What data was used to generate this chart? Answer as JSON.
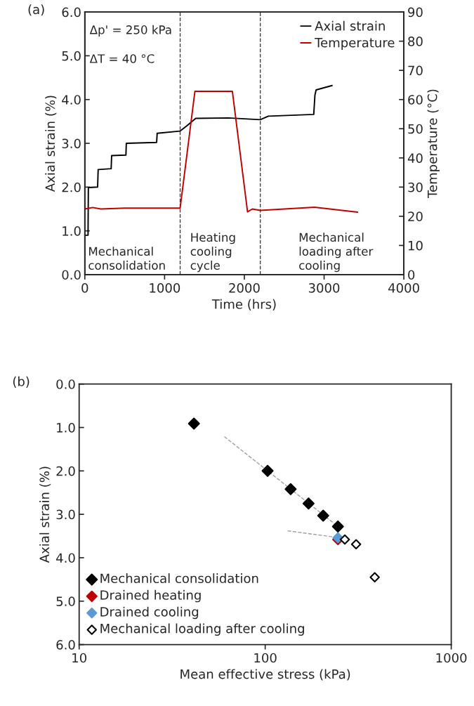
{
  "chart_data": [
    {
      "type": "line",
      "title": "(a)",
      "xlabel": "Time (hrs)",
      "ylabel": "Axial strain (%)",
      "y2label": "Temperature (°C)",
      "series": [
        {
          "name": "Axial strain",
          "color": "#000000",
          "x": [
            0,
            40,
            44,
            160,
            167,
            330,
            336,
            515,
            520,
            900,
            907,
            1195,
            1280,
            1390,
            1800,
            2200,
            2300,
            2870,
            2885,
            2900,
            3100
          ],
          "values": [
            0.9,
            0.9,
            1.99,
            2.0,
            2.4,
            2.42,
            2.72,
            2.73,
            3.0,
            3.02,
            3.23,
            3.28,
            3.4,
            3.57,
            3.58,
            3.54,
            3.62,
            3.66,
            4.1,
            4.22,
            4.32
          ]
        },
        {
          "name": "Temperature",
          "color": "#c00000",
          "axis": "y2",
          "x": [
            0,
            100,
            200,
            500,
            1195,
            1380,
            1850,
            2040,
            2100,
            2200,
            2880,
            3420
          ],
          "values": [
            22.5,
            23,
            22.5,
            22.8,
            22.8,
            62.8,
            62.8,
            21.5,
            22.5,
            22,
            23.1,
            21.4
          ]
        }
      ],
      "xlim": [
        0,
        4000
      ],
      "xticks": [
        0,
        1000,
        2000,
        3000,
        4000
      ],
      "ylim": [
        0,
        6
      ],
      "yticks": [
        {
          "value": 0,
          "label": "0.0"
        },
        {
          "value": 1,
          "label": "1.0"
        },
        {
          "value": 2,
          "label": "2.0"
        },
        {
          "value": 3,
          "label": "3.0"
        },
        {
          "value": 4,
          "label": "4.0"
        },
        {
          "value": 5,
          "label": "5.0"
        },
        {
          "value": 6,
          "label": "6.0"
        }
      ],
      "y2lim": [
        0,
        90
      ],
      "y2ticks": [
        0,
        10,
        20,
        30,
        40,
        50,
        60,
        70,
        80,
        90
      ],
      "ref_lines": [
        {
          "axis": "x",
          "value": 1195,
          "color": "#404040",
          "line_style": "dashed"
        },
        {
          "axis": "x",
          "value": 2200,
          "color": "#404040",
          "line_style": "dashed"
        }
      ],
      "annotations": [
        "Δp' = 250 kPa",
        "ΔT = 40 °C",
        "Mechanical\nconsolidation",
        "Heating\ncooling\ncycle",
        "Mechanical\nloading after\ncooling"
      ],
      "legend": "top right",
      "grid": false
    },
    {
      "type": "scatter",
      "title": "(b)",
      "xlabel": "Mean effective stress (kPa)",
      "ylabel": "Axial strain (%)",
      "marker": "diamond",
      "series": [
        {
          "type": "line",
          "color": "#a0a0a0",
          "line_style": "dashed",
          "marker": "none",
          "x": [
            60.3,
            246
          ],
          "values": [
            1.21,
            3.28
          ]
        },
        {
          "type": "line",
          "color": "#a0a0a0",
          "line_style": "dashed",
          "marker": "none",
          "x": [
            132,
            242
          ],
          "values": [
            3.38,
            3.53
          ]
        },
        {
          "name": "Mechanical consolidation",
          "color": "#000000",
          "x": [
            41.4,
            103,
            137,
            171,
            205,
            246
          ],
          "values": [
            0.91,
            2.0,
            2.42,
            2.75,
            3.03,
            3.28
          ]
        },
        {
          "name": "Drained heating",
          "color": "#c00000",
          "x": [
            246
          ],
          "values": [
            3.58
          ]
        },
        {
          "name": "Drained cooling",
          "color": "#5b9bd5",
          "x": [
            246
          ],
          "values": [
            3.54
          ]
        },
        {
          "name": "Mechanical loading after cooling",
          "color": "#ffffff",
          "x": [
            268,
            308,
            388
          ],
          "values": [
            3.58,
            3.69,
            4.45
          ]
        }
      ],
      "log": "x",
      "xlim": [
        10,
        1000
      ],
      "xticks": [
        10,
        100,
        1000
      ],
      "ylim": [
        6,
        0
      ],
      "yticks": [
        {
          "value": 0,
          "label": "0.0"
        },
        {
          "value": 1,
          "label": "1.0"
        },
        {
          "value": 2,
          "label": "2.0"
        },
        {
          "value": 3,
          "label": "3.0"
        },
        {
          "value": 4,
          "label": "4.0"
        },
        {
          "value": 5,
          "label": "5.0"
        },
        {
          "value": 6,
          "label": "6.0"
        }
      ],
      "legend": "bottom left",
      "grid": false
    }
  ]
}
